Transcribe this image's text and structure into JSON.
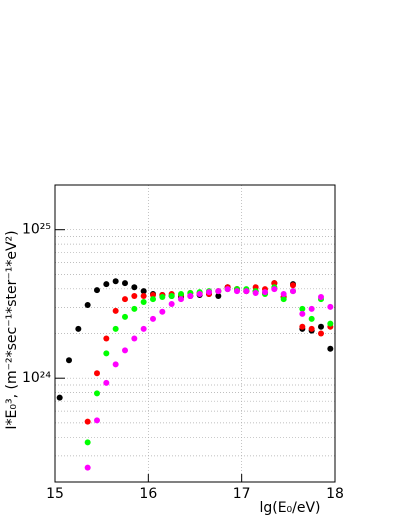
{
  "chart_data": {
    "type": "scatter",
    "xlabel": "lg(E₀/eV)",
    "ylabel": "I*E₀³, (m⁻²*sec⁻¹*ster⁻¹*eV²)",
    "xlim": [
      15,
      18
    ],
    "xticks": [
      15,
      16,
      17,
      18
    ],
    "ylim": [
      2e+23,
      2e+25
    ],
    "ylog": true,
    "yticks": [
      {
        "value": 1e+24,
        "label": "10²⁴"
      },
      {
        "value": 1e+25,
        "label": "10²⁵"
      }
    ],
    "yminorticks": [
      3e+23,
      4e+23,
      5e+23,
      6e+23,
      7e+23,
      8e+23,
      9e+23,
      2e+24,
      3e+24,
      4e+24,
      5e+24,
      6e+24,
      7e+24,
      8e+24,
      9e+24
    ],
    "grid": true,
    "series": [
      {
        "color": "#000000",
        "x": [
          15.05,
          15.15,
          15.25,
          15.35,
          15.45,
          15.55,
          15.65,
          15.75,
          15.85,
          15.95,
          16.05,
          16.15,
          16.25,
          16.35,
          16.45,
          16.55,
          16.65,
          16.75,
          16.85,
          16.95,
          17.05,
          17.15,
          17.25,
          17.35,
          17.45,
          17.55,
          17.65,
          17.75,
          17.85,
          17.95
        ],
        "values": [
          7.4e+23,
          1.32e+24,
          2.15e+24,
          3.11e+24,
          3.92e+24,
          4.3e+24,
          4.5e+24,
          4.37e+24,
          4.1e+24,
          3.86e+24,
          3.69e+24,
          3.63e+24,
          3.58e+24,
          3.52e+24,
          3.58e+24,
          3.63e+24,
          3.69e+24,
          3.58e+24,
          4.1e+24,
          3.98e+24,
          3.86e+24,
          3.86e+24,
          3.75e+24,
          4.37e+24,
          3.52e+24,
          4.3e+24,
          2.15e+24,
          2.09e+24,
          2.22e+24,
          1.58e+24
        ]
      },
      {
        "color": "#ff0000",
        "x": [
          15.35,
          15.45,
          15.55,
          15.65,
          15.75,
          15.85,
          15.95,
          16.05,
          16.15,
          16.25,
          16.35,
          16.45,
          16.55,
          16.65,
          16.75,
          16.85,
          16.95,
          17.05,
          17.15,
          17.25,
          17.35,
          17.45,
          17.55,
          17.65,
          17.75,
          17.85,
          17.95
        ],
        "values": [
          5.1e+23,
          1.08e+24,
          1.85e+24,
          2.84e+24,
          3.41e+24,
          3.58e+24,
          3.58e+24,
          3.63e+24,
          3.63e+24,
          3.69e+24,
          3.63e+24,
          3.75e+24,
          3.75e+24,
          3.69e+24,
          3.86e+24,
          4.1e+24,
          3.98e+24,
          3.86e+24,
          4.1e+24,
          3.98e+24,
          4.37e+24,
          3.52e+24,
          4.23e+24,
          2.22e+24,
          2.15e+24,
          2e+24,
          2.22e+24
        ]
      },
      {
        "color": "#00ff00",
        "x": [
          15.35,
          15.45,
          15.55,
          15.65,
          15.75,
          15.85,
          15.95,
          16.05,
          16.15,
          16.25,
          16.35,
          16.45,
          16.55,
          16.65,
          16.75,
          16.85,
          16.95,
          17.05,
          17.15,
          17.25,
          17.35,
          17.45,
          17.55,
          17.65,
          17.75,
          17.85,
          17.95
        ],
        "values": [
          3.7e+23,
          7.9e+23,
          1.47e+24,
          2.15e+24,
          2.59e+24,
          2.93e+24,
          3.26e+24,
          3.41e+24,
          3.52e+24,
          3.58e+24,
          3.69e+24,
          3.75e+24,
          3.8e+24,
          3.86e+24,
          3.86e+24,
          3.98e+24,
          3.98e+24,
          3.98e+24,
          3.86e+24,
          3.69e+24,
          4.1e+24,
          3.41e+24,
          3.86e+24,
          2.93e+24,
          2.51e+24,
          3.41e+24,
          2.33e+24
        ]
      },
      {
        "color": "#ff00ff",
        "x": [
          15.35,
          15.45,
          15.55,
          15.65,
          15.75,
          15.85,
          15.95,
          16.05,
          16.15,
          16.25,
          16.35,
          16.45,
          16.55,
          16.65,
          16.75,
          16.85,
          16.95,
          17.05,
          17.15,
          17.25,
          17.35,
          17.45,
          17.55,
          17.65,
          17.75,
          17.85,
          17.95
        ],
        "values": [
          2.5e+23,
          5.2e+23,
          9.3e+23,
          1.24e+24,
          1.54e+24,
          1.85e+24,
          2.15e+24,
          2.51e+24,
          2.8e+24,
          3.16e+24,
          3.41e+24,
          3.58e+24,
          3.69e+24,
          3.8e+24,
          3.86e+24,
          3.98e+24,
          3.86e+24,
          3.86e+24,
          3.75e+24,
          3.8e+24,
          3.98e+24,
          3.69e+24,
          3.86e+24,
          2.71e+24,
          2.93e+24,
          3.52e+24,
          3.02e+24
        ]
      }
    ]
  }
}
